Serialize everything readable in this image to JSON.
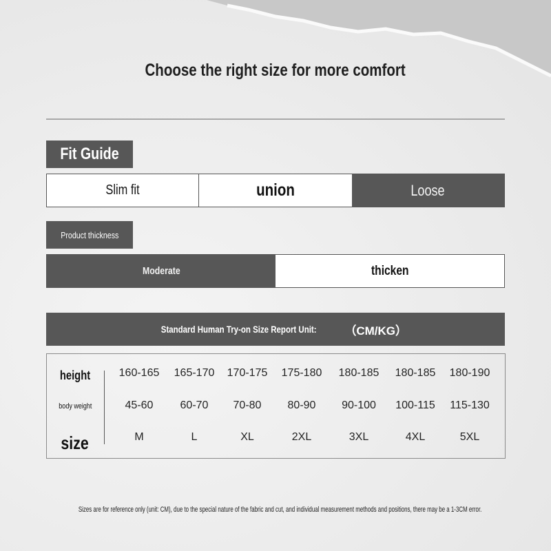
{
  "title": "Choose the right size for more comfort",
  "fit_guide": {
    "label": "Fit Guide",
    "options": [
      "Slim fit",
      "union",
      "Loose"
    ],
    "selected": "Loose"
  },
  "thickness": {
    "label": "Product thickness",
    "options": [
      "Moderate",
      "thicken"
    ],
    "selected": "Moderate"
  },
  "banner": {
    "text": "Standard Human Try-on Size Report Unit:",
    "unit": "（CM/KG）"
  },
  "table": {
    "row_labels": [
      "height",
      "body weight",
      "size"
    ],
    "height": [
      "160-165",
      "165-170",
      "170-175",
      "175-180",
      "180-185",
      "180-185",
      "180-190"
    ],
    "weight": [
      "45-60",
      "60-70",
      "70-80",
      "80-90",
      "90-100",
      "100-115",
      "115-130"
    ],
    "size": [
      "M",
      "L",
      "XL",
      "2XL",
      "3XL",
      "4XL",
      "5XL"
    ]
  },
  "footnote": "Sizes are for reference only (unit: CM), due to the special nature of the fabric and cut, and individual measurement methods and positions, there may be a 1-3CM error.",
  "colors": {
    "dark": "#575757",
    "background": "#ececec"
  }
}
